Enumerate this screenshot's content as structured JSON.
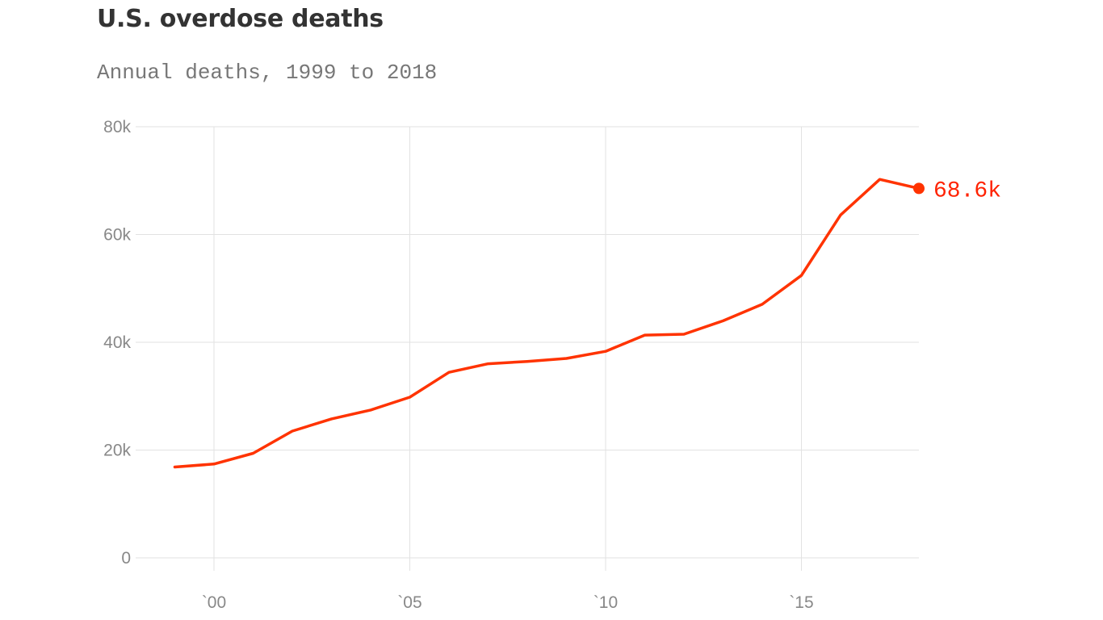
{
  "chart_data": {
    "type": "line",
    "title": "U.S. overdose deaths",
    "subtitle": "Annual deaths, 1999 to 2018",
    "xlabel": "",
    "ylabel": "",
    "x": [
      1999,
      2000,
      2001,
      2002,
      2003,
      2004,
      2005,
      2006,
      2007,
      2008,
      2009,
      2010,
      2011,
      2012,
      2013,
      2014,
      2015,
      2016,
      2017,
      2018
    ],
    "series": [
      {
        "values": [
          16849,
          17415,
          19394,
          23518,
          25785,
          27424,
          29813,
          34425,
          36010,
          36450,
          37004,
          38329,
          41340,
          41502,
          43982,
          47055,
          52404,
          63632,
          70237,
          68557
        ],
        "color": "#ff3300"
      }
    ],
    "xlim": [
      1998,
      2018
    ],
    "ylim": [
      0,
      80000
    ],
    "x_ticks": [
      2000,
      2005,
      2010,
      2015
    ],
    "x_tick_labels": [
      "`00",
      "`05",
      "`10",
      "`15"
    ],
    "y_ticks": [
      0,
      20000,
      40000,
      60000,
      80000
    ],
    "y_tick_labels": [
      "0",
      "20k",
      "40k",
      "60k",
      "80k"
    ],
    "end_label": "68.6k",
    "end_label_color": "#ff2200",
    "grid": true,
    "gridline_color": "#e2e2e2"
  }
}
